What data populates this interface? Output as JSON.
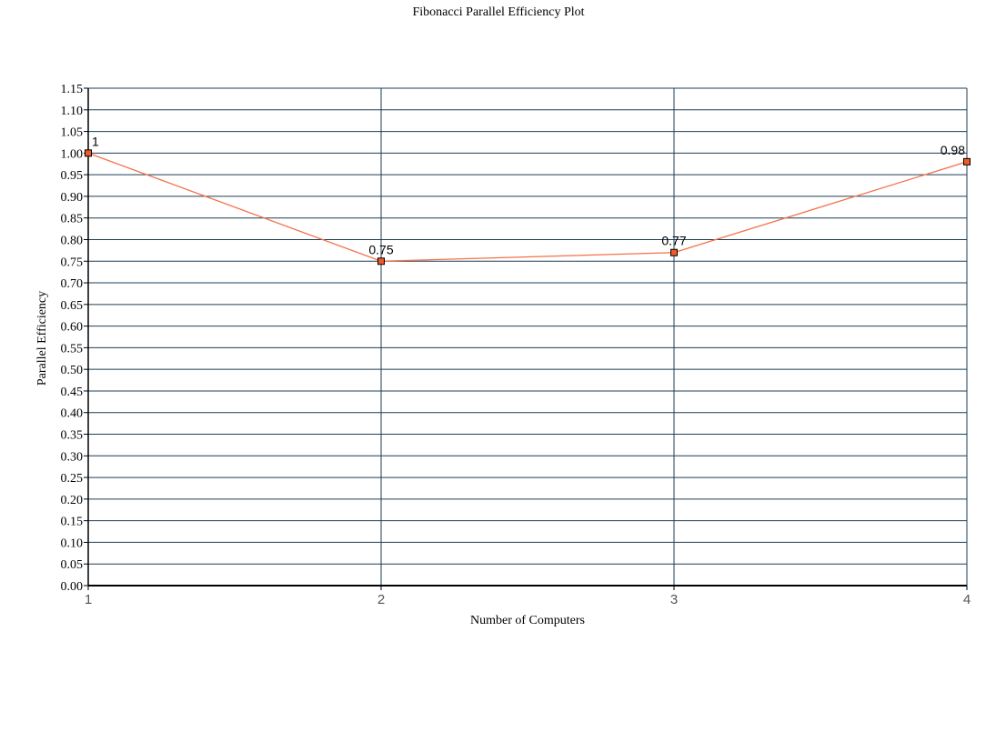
{
  "chart_data": {
    "type": "line",
    "title": "Fibonacci Parallel Efficiency Plot",
    "xlabel": "Number of Computers",
    "ylabel": "Parallel Efficiency",
    "x": [
      1,
      2,
      3,
      4
    ],
    "x_tick_labels": [
      "1",
      "2",
      "3",
      "4"
    ],
    "series": [
      {
        "values": [
          1,
          0.75,
          0.77,
          0.98
        ],
        "data_labels": [
          "1",
          "0.75",
          "0.77",
          "0.98"
        ]
      }
    ],
    "ylim": [
      0,
      1.15
    ],
    "xlim": [
      1,
      4
    ],
    "y_tick_labels": [
      "0.00",
      "0.05",
      "0.10",
      "0.15",
      "0.20",
      "0.25",
      "0.30",
      "0.35",
      "0.40",
      "0.45",
      "0.50",
      "0.55",
      "0.60",
      "0.65",
      "0.70",
      "0.75",
      "0.80",
      "0.85",
      "0.90",
      "0.95",
      "1.00",
      "1.05",
      "1.10",
      "1.15"
    ],
    "grid": true,
    "legend": "none",
    "colors": {
      "line": "#f4714a",
      "marker_fill": "#f05a28",
      "marker_stroke": "#000000",
      "grid": "#1d3f57",
      "axis": "#000000"
    }
  }
}
